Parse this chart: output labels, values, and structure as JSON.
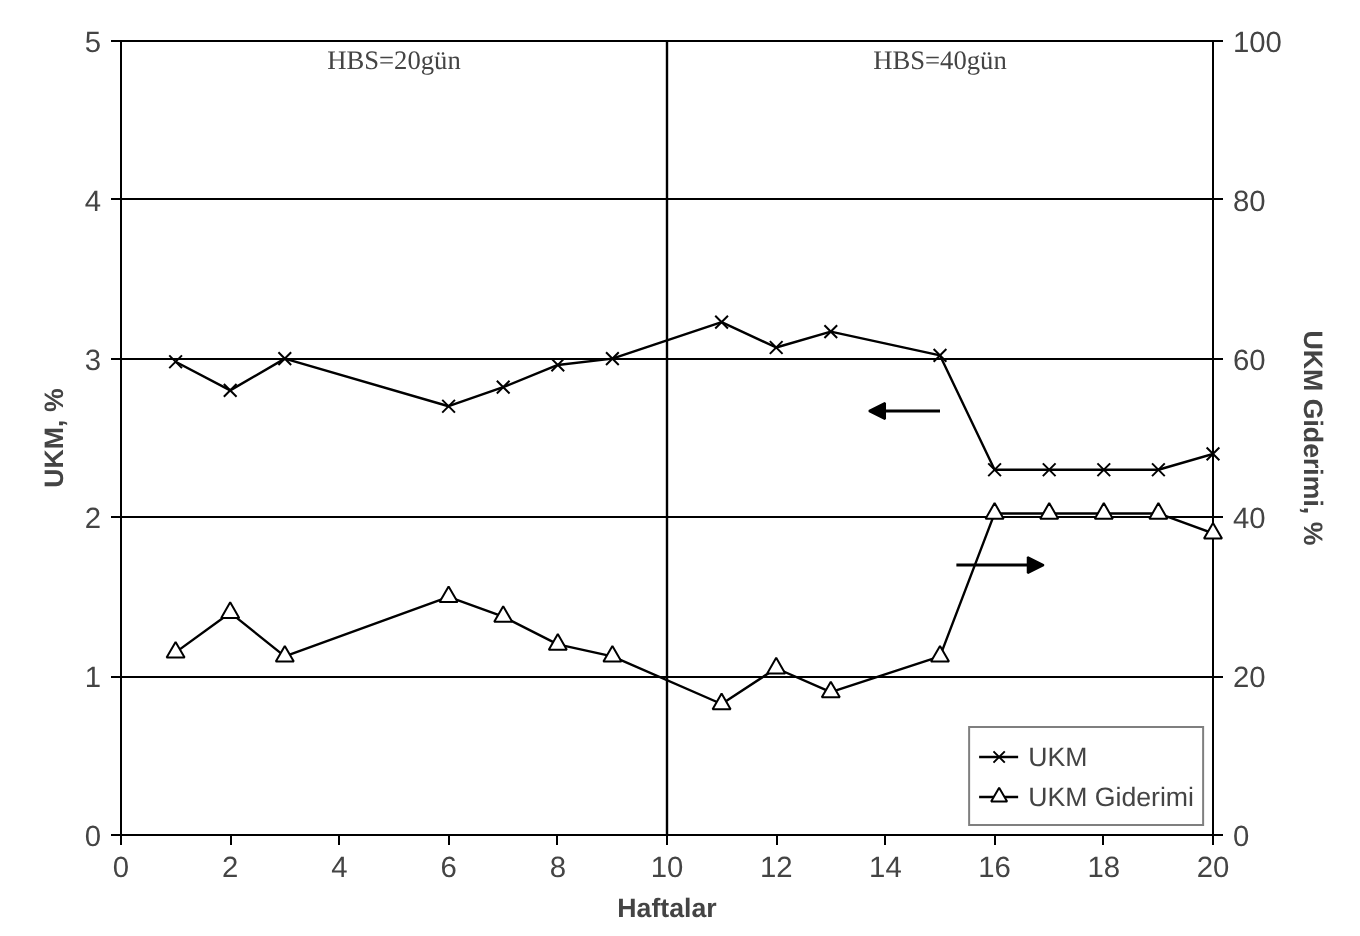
{
  "chart_data": {
    "type": "line",
    "xlabel": "Haftalar",
    "ylabel": "UKM, %",
    "y2label": "UKM Giderimi, %",
    "xlim": [
      0,
      20
    ],
    "xticks": [
      0,
      2,
      4,
      6,
      8,
      10,
      12,
      14,
      16,
      18,
      20
    ],
    "ylim": [
      0,
      5
    ],
    "yticks": [
      0,
      1,
      2,
      3,
      4,
      5
    ],
    "y2lim": [
      0,
      100
    ],
    "y2ticks": [
      0,
      20,
      40,
      60,
      80,
      100
    ],
    "grid": "y",
    "legend": "bottom right",
    "series": [
      {
        "name": "UKM",
        "color": "#000000",
        "marker": "cross",
        "x": [
          1,
          2,
          3,
          6,
          7,
          8,
          9,
          11,
          12,
          13,
          15,
          16,
          17,
          18,
          19,
          20
        ],
        "values": [
          2.98,
          2.8,
          3.0,
          2.7,
          2.82,
          2.96,
          3.0,
          3.23,
          3.07,
          3.17,
          3.02,
          2.3,
          2.3,
          2.3,
          2.3,
          2.4
        ]
      },
      {
        "name": "UKM Giderimi",
        "color": "#000000",
        "marker": "triangle",
        "axis": "y2",
        "x": [
          1,
          2,
          3,
          6,
          7,
          8,
          9,
          11,
          12,
          13,
          15,
          16,
          17,
          18,
          19,
          20
        ],
        "values": [
          23,
          28,
          22.5,
          30,
          27.5,
          24,
          22.5,
          16.5,
          21,
          18,
          22.5,
          40.5,
          40.5,
          40.5,
          40.5,
          38
        ]
      }
    ],
    "ref_lines": [
      {
        "axis": "x",
        "value": 10,
        "color": "#000000"
      }
    ],
    "annotations": [
      "HBS=20gün",
      "HBS=40gün"
    ]
  }
}
